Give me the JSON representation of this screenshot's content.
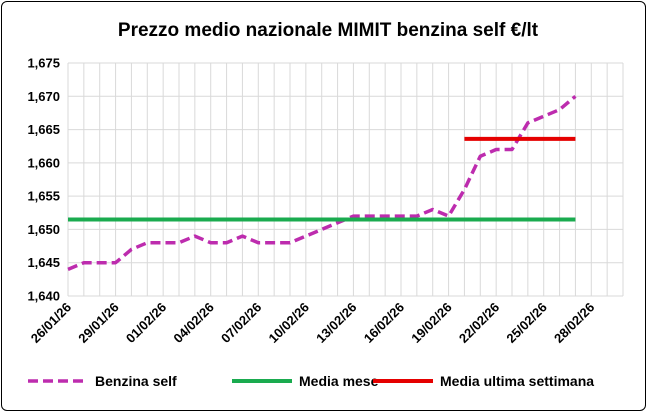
{
  "chart_data": {
    "type": "line",
    "title": "Prezzo medio nazionale MIMIT benzina self €/lt",
    "xlabel": "",
    "ylabel": "",
    "ylim": [
      1.64,
      1.675
    ],
    "y_ticks": [
      "1,640",
      "1,645",
      "1,650",
      "1,655",
      "1,660",
      "1,665",
      "1,670",
      "1,675"
    ],
    "x_ticks": [
      "26/01/26",
      "29/01/26",
      "01/02/26",
      "04/02/26",
      "07/02/26",
      "10/02/26",
      "13/02/26",
      "16/02/26",
      "19/02/26",
      "22/02/26",
      "25/02/26",
      "28/02/26"
    ],
    "x_dates": [
      "2026-01-26",
      "2026-01-27",
      "2026-01-28",
      "2026-01-29",
      "2026-01-30",
      "2026-01-31",
      "2026-02-01",
      "2026-02-02",
      "2026-02-03",
      "2026-02-04",
      "2026-02-05",
      "2026-02-06",
      "2026-02-07",
      "2026-02-08",
      "2026-02-09",
      "2026-02-10",
      "2026-02-11",
      "2026-02-12",
      "2026-02-13",
      "2026-02-14",
      "2026-02-15",
      "2026-02-16",
      "2026-02-17",
      "2026-02-18",
      "2026-02-19",
      "2026-02-20",
      "2026-02-21",
      "2026-02-22",
      "2026-02-23",
      "2026-02-24",
      "2026-02-25",
      "2026-02-26",
      "2026-02-27",
      "2026-02-28",
      "2026-03-01",
      "2026-03-02"
    ],
    "series": [
      {
        "name": "Benzina self",
        "color": "#bd2cae",
        "style": "dashed",
        "x": [
          "2026-01-26",
          "2026-01-27",
          "2026-01-28",
          "2026-01-29",
          "2026-01-30",
          "2026-01-31",
          "2026-02-01",
          "2026-02-02",
          "2026-02-03",
          "2026-02-04",
          "2026-02-05",
          "2026-02-06",
          "2026-02-07",
          "2026-02-08",
          "2026-02-09",
          "2026-02-10",
          "2026-02-11",
          "2026-02-12",
          "2026-02-13",
          "2026-02-14",
          "2026-02-15",
          "2026-02-16",
          "2026-02-17",
          "2026-02-18",
          "2026-02-19",
          "2026-02-20",
          "2026-02-21",
          "2026-02-22",
          "2026-02-23",
          "2026-02-24",
          "2026-02-25",
          "2026-02-26",
          "2026-02-27"
        ],
        "values": [
          1.644,
          1.645,
          1.645,
          1.645,
          1.647,
          1.648,
          1.648,
          1.648,
          1.649,
          1.648,
          1.648,
          1.649,
          1.648,
          1.648,
          1.648,
          1.649,
          1.65,
          1.651,
          1.652,
          1.652,
          1.652,
          1.652,
          1.652,
          1.653,
          1.652,
          1.656,
          1.661,
          1.662,
          1.662,
          1.666,
          1.667,
          1.668,
          1.67
        ]
      },
      {
        "name": "Media mese",
        "color": "#1aab4f",
        "style": "solid",
        "x": [
          "2026-01-26",
          "2026-02-27"
        ],
        "values": [
          1.6515,
          1.6515
        ]
      },
      {
        "name": "Media ultima settimana",
        "color": "#e50000",
        "style": "solid",
        "x": [
          "2026-02-20",
          "2026-02-27"
        ],
        "values": [
          1.6636,
          1.6636
        ]
      }
    ],
    "grid": true,
    "legend_position": "bottom"
  }
}
